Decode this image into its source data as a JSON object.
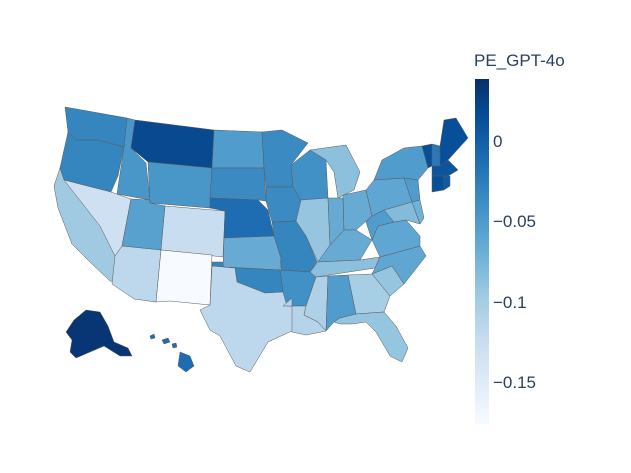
{
  "colorbar": {
    "title": "PE_GPT-4o",
    "ticks": [
      {
        "label": "0",
        "value": 0
      },
      {
        "label": "−0.05",
        "value": -0.05
      },
      {
        "label": "−0.1",
        "value": -0.1
      },
      {
        "label": "−0.15",
        "value": -0.15
      }
    ],
    "range": [
      -0.175,
      0.04
    ],
    "colors": [
      "#f7fbff",
      "#deebf7",
      "#c6dbef",
      "#9ecae1",
      "#6baed6",
      "#4292c6",
      "#2171b5",
      "#08519c",
      "#08306b"
    ]
  },
  "chart_data": {
    "type": "choropleth",
    "scope": "usa",
    "colorbar_title": "PE_GPT-4o",
    "values": {
      "AK": 0.035,
      "MT": 0.02,
      "ME": 0.015,
      "VT": 0.015,
      "CT": 0.015,
      "MA": 0.01,
      "RI": 0.005,
      "HI": -0.01,
      "NE": -0.01,
      "NH": -0.02,
      "WA": -0.03,
      "OR": -0.03,
      "OK": -0.03,
      "MO": -0.03,
      "MN": -0.035,
      "SD": -0.035,
      "IA": -0.035,
      "WI": -0.04,
      "AR": -0.04,
      "ID": -0.045,
      "WY": -0.045,
      "ND": -0.05,
      "AL": -0.05,
      "NY": -0.05,
      "WV": -0.05,
      "NJ": -0.05,
      "UT": -0.055,
      "PA": -0.06,
      "VA": -0.06,
      "NC": -0.06,
      "KS": -0.065,
      "IN": -0.065,
      "OH": -0.065,
      "KY": -0.065,
      "DE": -0.07,
      "MD": -0.08,
      "MI": -0.085,
      "TN": -0.085,
      "SC": -0.09,
      "IL": -0.09,
      "FL": -0.09,
      "CA": -0.095,
      "GA": -0.1,
      "MS": -0.105,
      "LA": -0.11,
      "TX": -0.115,
      "AZ": -0.115,
      "CO": -0.125,
      "NV": -0.13,
      "NM": -0.175
    }
  }
}
